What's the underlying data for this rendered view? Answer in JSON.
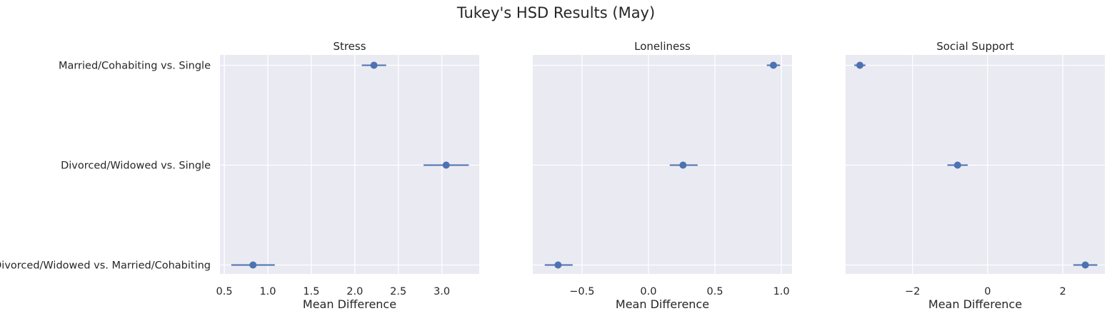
{
  "title": "Tukey's HSD Results (May)",
  "colors": {
    "panel_bg": "#EAEAF2",
    "grid": "#FFFFFF",
    "marker": "#4C72B0",
    "text": "#262626"
  },
  "chart_data": [
    {
      "type": "scatter",
      "title": "Stress",
      "xlabel": "Mean Difference",
      "ylabel": "",
      "grid": true,
      "categories": [
        "Married/Cohabiting vs. Single",
        "Divorced/Widowed vs. Single",
        "Divorced/Widowed vs. Married/Cohabiting"
      ],
      "values": [
        2.22,
        3.05,
        0.83
      ],
      "ci_low": [
        2.08,
        2.79,
        0.58
      ],
      "ci_high": [
        2.36,
        3.31,
        1.08
      ],
      "xlim": [
        0.45,
        3.43
      ],
      "xticks": [
        0.5,
        1.0,
        1.5,
        2.0,
        2.5,
        3.0
      ],
      "xtick_labels": [
        "0.5",
        "1.0",
        "1.5",
        "2.0",
        "2.5",
        "3.0"
      ]
    },
    {
      "type": "scatter",
      "title": "Loneliness",
      "xlabel": "Mean Difference",
      "ylabel": "",
      "grid": true,
      "categories": [
        "Married/Cohabiting vs. Single",
        "Divorced/Widowed vs. Single",
        "Divorced/Widowed vs. Married/Cohabiting"
      ],
      "values": [
        0.94,
        0.26,
        -0.68
      ],
      "ci_low": [
        0.89,
        0.16,
        -0.78
      ],
      "ci_high": [
        0.99,
        0.37,
        -0.57
      ],
      "xlim": [
        -0.87,
        1.08
      ],
      "xticks": [
        -0.5,
        0.0,
        0.5,
        1.0
      ],
      "xtick_labels": [
        "−0.5",
        "0.0",
        "0.5",
        "1.0"
      ]
    },
    {
      "type": "scatter",
      "title": "Social Support",
      "xlabel": "Mean Difference",
      "ylabel": "",
      "grid": true,
      "categories": [
        "Married/Cohabiting vs. Single",
        "Divorced/Widowed vs. Single",
        "Divorced/Widowed vs. Married/Cohabiting"
      ],
      "values": [
        -3.4,
        -0.8,
        2.6
      ],
      "ci_low": [
        -3.55,
        -1.07,
        2.28
      ],
      "ci_high": [
        -3.25,
        -0.53,
        2.92
      ],
      "xlim": [
        -3.78,
        3.12
      ],
      "xticks": [
        -2,
        0,
        2
      ],
      "xtick_labels": [
        "−2",
        "0",
        "2"
      ]
    }
  ]
}
